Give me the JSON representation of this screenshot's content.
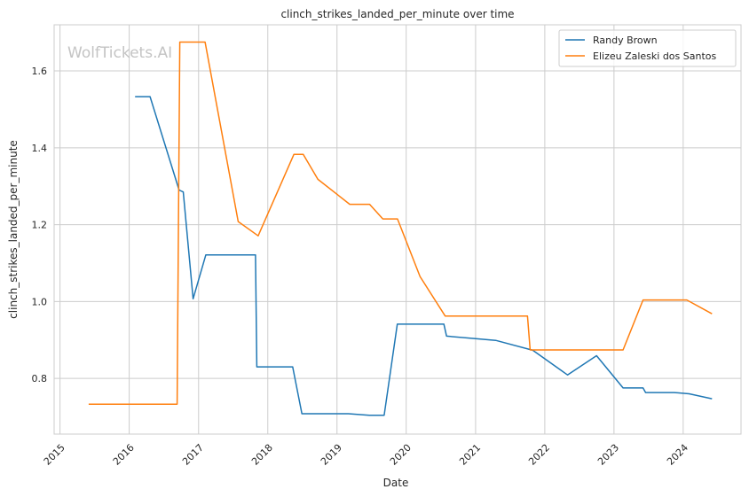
{
  "chart_data": {
    "type": "line",
    "title": "clinch_strikes_landed_per_minute over time",
    "xlabel": "Date",
    "ylabel": "clinch_strikes_landed_per_minute",
    "watermark": "WolfTickets.AI",
    "xlim": [
      "2014-12-01",
      "2024-11-01"
    ],
    "ylim": [
      0.655,
      1.72
    ],
    "x_ticks": [
      "2015",
      "2016",
      "2017",
      "2018",
      "2019",
      "2020",
      "2021",
      "2022",
      "2023",
      "2024"
    ],
    "y_ticks": [
      "0.8",
      "1.0",
      "1.2",
      "1.4",
      "1.6"
    ],
    "grid": true,
    "legend_position": "top-right",
    "series": [
      {
        "name": "Randy Brown",
        "color": "#1f77b4",
        "points": [
          [
            "2016-02-01",
            1.533
          ],
          [
            "2016-04-20",
            1.533
          ],
          [
            "2016-09-20",
            1.29
          ],
          [
            "2016-10-12",
            1.285
          ],
          [
            "2016-12-03",
            1.007
          ],
          [
            "2017-02-08",
            1.121
          ],
          [
            "2017-10-28",
            1.121
          ],
          [
            "2017-11-04",
            0.83
          ],
          [
            "2018-05-12",
            0.83
          ],
          [
            "2018-06-30",
            0.708
          ],
          [
            "2019-03-02",
            0.708
          ],
          [
            "2019-06-20",
            0.704
          ],
          [
            "2019-09-07",
            0.704
          ],
          [
            "2019-11-15",
            0.941
          ],
          [
            "2020-07-18",
            0.941
          ],
          [
            "2020-08-01",
            0.91
          ],
          [
            "2021-04-17",
            0.899
          ],
          [
            "2021-10-30",
            0.873
          ],
          [
            "2022-05-01",
            0.809
          ],
          [
            "2022-10-01",
            0.859
          ],
          [
            "2023-02-18",
            0.775
          ],
          [
            "2023-06-03",
            0.775
          ],
          [
            "2023-06-17",
            0.763
          ],
          [
            "2023-11-15",
            0.763
          ],
          [
            "2024-02-01",
            0.76
          ],
          [
            "2024-06-01",
            0.747
          ]
        ]
      },
      {
        "name": "Elizeu Zaleski dos Santos",
        "color": "#ff7f0e",
        "points": [
          [
            "2015-06-01",
            0.733
          ],
          [
            "2016-09-10",
            0.733
          ],
          [
            "2016-09-24",
            1.675
          ],
          [
            "2017-02-04",
            1.675
          ],
          [
            "2017-07-29",
            1.208
          ],
          [
            "2017-11-11",
            1.171
          ],
          [
            "2018-05-19",
            1.383
          ],
          [
            "2018-07-07",
            1.383
          ],
          [
            "2018-09-22",
            1.318
          ],
          [
            "2019-03-09",
            1.253
          ],
          [
            "2019-06-22",
            1.253
          ],
          [
            "2019-08-31",
            1.215
          ],
          [
            "2019-11-16",
            1.215
          ],
          [
            "2020-03-14",
            1.065
          ],
          [
            "2020-07-25",
            0.962
          ],
          [
            "2021-10-02",
            0.962
          ],
          [
            "2021-10-16",
            0.874
          ],
          [
            "2023-02-18",
            0.874
          ],
          [
            "2023-06-03",
            1.004
          ],
          [
            "2024-01-20",
            1.004
          ],
          [
            "2024-06-01",
            0.968
          ]
        ]
      }
    ]
  }
}
